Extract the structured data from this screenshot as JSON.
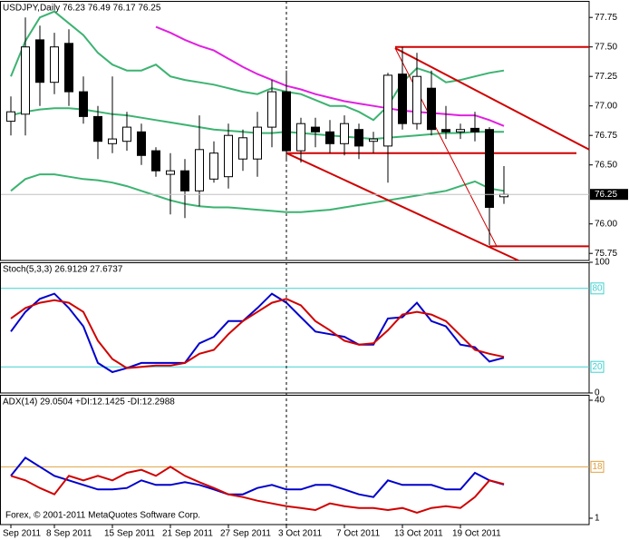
{
  "chart_data": [
    {
      "type": "candlestick",
      "title": "USDJPY,Daily  76.23 76.49 76.17 76.25",
      "xlim": [
        -0.75,
        39.875
      ],
      "xticks": [
        {
          "value": 0,
          "label": "Sep 2011"
        },
        {
          "value": 3,
          "label": "8 Sep 2011"
        },
        {
          "value": 7,
          "label": "15 Sep 2011"
        },
        {
          "value": 11,
          "label": "21 Sep 2011"
        },
        {
          "value": 15,
          "label": "27 Sep 2011"
        },
        {
          "value": 19,
          "label": "3 Oct 2011"
        },
        {
          "value": 23,
          "label": "7 Oct 2011"
        },
        {
          "value": 27,
          "label": "13 Oct 2011"
        },
        {
          "value": 31,
          "label": "19 Oct 2011"
        }
      ],
      "separator_x": 19,
      "ylim": [
        75.69,
        77.89
      ],
      "yticks": [
        77.75,
        {
          "value": 77.5,
          "label": "77.50"
        },
        77.25,
        {
          "value": 77,
          "label": "77.00"
        },
        76.75,
        {
          "value": 76.5,
          "label": "76.50"
        },
        {
          "value": 76,
          "label": "76.00"
        },
        75.75
      ],
      "open": [
        76.87,
        76.93,
        77.56,
        77.2,
        77.53,
        77.12,
        76.91,
        76.68,
        76.7,
        76.78,
        76.62,
        76.42,
        76.45,
        76.28,
        76.38,
        76.4,
        76.55,
        76.55,
        76.82,
        77.12,
        76.62,
        76.82,
        76.78,
        76.68,
        76.8,
        76.7,
        76.66,
        77.27,
        76.85,
        77.15,
        76.8,
        76.78,
        76.81,
        76.8,
        76.23
      ],
      "high": [
        77.08,
        77.75,
        77.68,
        77.62,
        77.65,
        77.25,
        77.0,
        77.25,
        76.95,
        76.85,
        76.65,
        76.6,
        76.55,
        76.92,
        76.7,
        76.85,
        76.8,
        76.95,
        77.22,
        77.3,
        76.9,
        76.9,
        76.88,
        76.92,
        76.85,
        76.78,
        77.28,
        77.5,
        77.45,
        77.3,
        77.0,
        76.85,
        76.95,
        76.82,
        76.49
      ],
      "low": [
        76.75,
        76.75,
        77.0,
        77.1,
        77.0,
        76.85,
        76.55,
        76.6,
        76.62,
        76.5,
        76.4,
        76.08,
        76.05,
        76.15,
        76.35,
        76.3,
        76.45,
        76.4,
        76.65,
        76.55,
        76.52,
        76.65,
        76.6,
        76.58,
        76.55,
        76.6,
        76.35,
        76.8,
        76.8,
        76.75,
        76.72,
        76.72,
        76.7,
        75.82,
        76.17
      ],
      "close": [
        76.95,
        77.5,
        77.2,
        77.5,
        77.12,
        76.91,
        76.7,
        76.72,
        76.82,
        76.58,
        76.45,
        76.45,
        76.28,
        76.63,
        76.6,
        76.75,
        76.73,
        76.82,
        77.12,
        76.62,
        76.85,
        76.78,
        76.68,
        76.85,
        76.66,
        76.72,
        77.26,
        76.85,
        77.25,
        76.8,
        76.78,
        76.8,
        76.78,
        76.14,
        76.25
      ],
      "bull_color": "#ffffff",
      "bear_color": "#000000",
      "current_price_color": "#c0c0c0",
      "overlays": [
        {
          "color": "#3cb371",
          "values": [
            77.25,
            77.55,
            77.75,
            77.8,
            77.7,
            77.6,
            77.45,
            77.35,
            77.3,
            77.3,
            77.35,
            77.25,
            77.22,
            77.2,
            77.18,
            77.15,
            77.12,
            77.1,
            77.15,
            77.12,
            77.1,
            77.05,
            77.0,
            77.0,
            76.95,
            76.88,
            77.0,
            77.2,
            77.32,
            77.28,
            77.2,
            77.22,
            77.25,
            77.28,
            77.3
          ]
        },
        {
          "color": "#3cb371",
          "values": [
            76.92,
            76.95,
            76.97,
            76.98,
            76.98,
            76.97,
            76.95,
            76.93,
            76.92,
            76.9,
            76.88,
            76.86,
            76.84,
            76.82,
            76.8,
            76.79,
            76.78,
            76.77,
            76.77,
            76.78,
            76.77,
            76.76,
            76.75,
            76.74,
            76.73,
            76.72,
            76.73,
            76.74,
            76.75,
            76.76,
            76.77,
            76.77,
            76.78,
            76.78,
            76.78
          ]
        },
        {
          "color": "#3cb371",
          "values": [
            76.28,
            76.38,
            76.42,
            76.42,
            76.4,
            76.38,
            76.37,
            76.35,
            76.32,
            76.28,
            76.24,
            76.2,
            76.17,
            76.15,
            76.14,
            76.14,
            76.13,
            76.12,
            76.11,
            76.1,
            76.1,
            76.11,
            76.12,
            76.14,
            76.16,
            76.18,
            76.2,
            76.22,
            76.24,
            76.26,
            76.28,
            76.32,
            76.36,
            76.3,
            76.28
          ]
        },
        {
          "color": "#e020e0",
          "width": 2,
          "values": [
            null,
            null,
            null,
            null,
            null,
            null,
            null,
            null,
            null,
            null,
            77.67,
            77.62,
            77.56,
            77.51,
            77.47,
            77.4,
            77.33,
            77.27,
            77.22,
            77.17,
            77.14,
            77.1,
            77.07,
            77.04,
            77.02,
            77.0,
            76.98,
            76.96,
            76.95,
            76.94,
            76.93,
            76.92,
            76.92,
            76.88,
            76.83
          ]
        }
      ],
      "lines": [
        {
          "color": "#d00000",
          "width": 2,
          "x": [
            26.5,
            39.875
          ],
          "y": [
            77.5,
            77.5
          ]
        },
        {
          "color": "#d00000",
          "width": 2,
          "x": [
            19,
            39
          ],
          "y": [
            76.6,
            76.6
          ]
        },
        {
          "color": "#d00000",
          "width": 2,
          "x": [
            33,
            39.875
          ],
          "y": [
            75.81,
            75.81
          ]
        },
        {
          "color": "#d00000",
          "width": 2,
          "x": [
            26.5,
            39.875
          ],
          "y": [
            77.49,
            76.63
          ]
        },
        {
          "color": "#d00000",
          "width": 2,
          "x": [
            19,
            35
          ],
          "y": [
            76.6,
            75.69
          ]
        },
        {
          "color": "#d00000",
          "width": 1,
          "x": [
            26.5,
            33.5
          ],
          "y": [
            77.49,
            75.81
          ]
        }
      ]
    },
    {
      "type": "line",
      "title": "Stoch(5,3,3) 26.9129 27.6737",
      "xlim": [
        -0.75,
        39.875
      ],
      "ylim": [
        0,
        100
      ],
      "yticks": [
        100,
        0
      ],
      "levels": [
        80,
        20
      ],
      "level_color": "#40d0d0",
      "series": [
        {
          "color": "#0000cc",
          "values": [
            47,
            62,
            72,
            76,
            65,
            51,
            23,
            16,
            19,
            23,
            23,
            23,
            23,
            38,
            43,
            55,
            55,
            65,
            76,
            69,
            58,
            47,
            45,
            43,
            37,
            37,
            57,
            58,
            69,
            55,
            51,
            37,
            35,
            24,
            26.91
          ]
        },
        {
          "color": "#d00000",
          "values": [
            57,
            65,
            69,
            71,
            69,
            62,
            40,
            26,
            19,
            20,
            21,
            21,
            23,
            30,
            33,
            45,
            55,
            62,
            69,
            72,
            67,
            55,
            48,
            40,
            37,
            38,
            48,
            60,
            62,
            60,
            55,
            44,
            33,
            30,
            27.67
          ]
        }
      ]
    },
    {
      "type": "line",
      "title": "ADX(14) 29.0504 +DI:12.1425 -DI:12.2988",
      "footer": "Forex, © 2001-2011 MetaQuotes Software Corp.",
      "xlim": [
        -0.75,
        39.875
      ],
      "ylim": [
        -1.1,
        41.8
      ],
      "yticks": [
        40,
        1
      ],
      "levels": [
        18
      ],
      "level_color": "#e0a040",
      "series": [
        {
          "color": "#0000cc",
          "values": [
            15,
            21,
            18,
            15,
            13.5,
            12,
            10.5,
            10.5,
            11,
            13.5,
            12,
            12,
            12.9,
            12,
            10.5,
            8.9,
            8.9,
            11,
            12,
            10.5,
            10.5,
            12,
            12,
            10.5,
            8.9,
            8,
            13.5,
            12,
            12,
            12,
            10.5,
            10.5,
            16,
            13.5,
            12.14
          ]
        },
        {
          "color": "#d00000",
          "values": [
            15,
            13.5,
            11,
            8.9,
            15,
            13.5,
            15,
            13.5,
            16,
            17,
            15,
            18,
            15,
            12.9,
            11,
            8.9,
            8,
            6.8,
            5.9,
            5,
            4.4,
            3.7,
            5.9,
            5,
            4.4,
            4.4,
            3.7,
            4.4,
            2.8,
            4.4,
            5,
            4.4,
            8,
            13.5,
            12.3
          ]
        }
      ]
    }
  ]
}
